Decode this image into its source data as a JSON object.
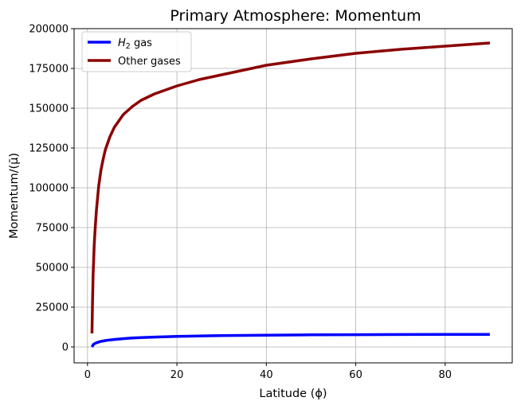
{
  "chart_data": {
    "type": "line",
    "title": "Primary Atmosphere: Momentum",
    "xlabel": "Latitude (ϕ)",
    "ylabel": "Momentum/(μ̄)",
    "xlim": [
      -3,
      95
    ],
    "ylim": [
      -10000,
      200000
    ],
    "xticks": [
      0,
      20,
      40,
      60,
      80
    ],
    "yticks": [
      0,
      25000,
      50000,
      75000,
      100000,
      125000,
      150000,
      175000,
      200000
    ],
    "grid": true,
    "legend_position": "top-left",
    "series": [
      {
        "name": "H2 gas",
        "color": "#0000ff",
        "x": [
          1,
          1.3,
          1.6,
          2,
          2.5,
          3,
          4,
          5,
          6,
          8,
          10,
          12,
          15,
          20,
          25,
          30,
          40,
          50,
          60,
          70,
          80,
          90
        ],
        "y": [
          0,
          1500,
          2100,
          2600,
          3100,
          3500,
          4000,
          4400,
          4700,
          5200,
          5600,
          5900,
          6200,
          6600,
          6900,
          7100,
          7400,
          7600,
          7700,
          7800,
          7850,
          7900
        ]
      },
      {
        "name": "Other gases",
        "color": "#8b0000",
        "x": [
          1,
          1.1,
          1.25,
          1.5,
          1.75,
          2,
          2.5,
          3,
          3.5,
          4,
          5,
          6,
          7,
          8,
          10,
          12,
          15,
          20,
          25,
          30,
          40,
          50,
          60,
          70,
          80,
          90
        ],
        "y": [
          8500,
          25000,
          45000,
          64000,
          76000,
          86000,
          101000,
          111000,
          118000,
          124000,
          132000,
          138000,
          142000,
          146000,
          151000,
          155000,
          159000,
          164000,
          168000,
          171000,
          177000,
          181000,
          184500,
          187000,
          189000,
          191000
        ]
      }
    ]
  },
  "legend": {
    "h2_base": "H",
    "h2_sub": "2",
    "h2_rest": " gas",
    "other": "Other gases"
  }
}
